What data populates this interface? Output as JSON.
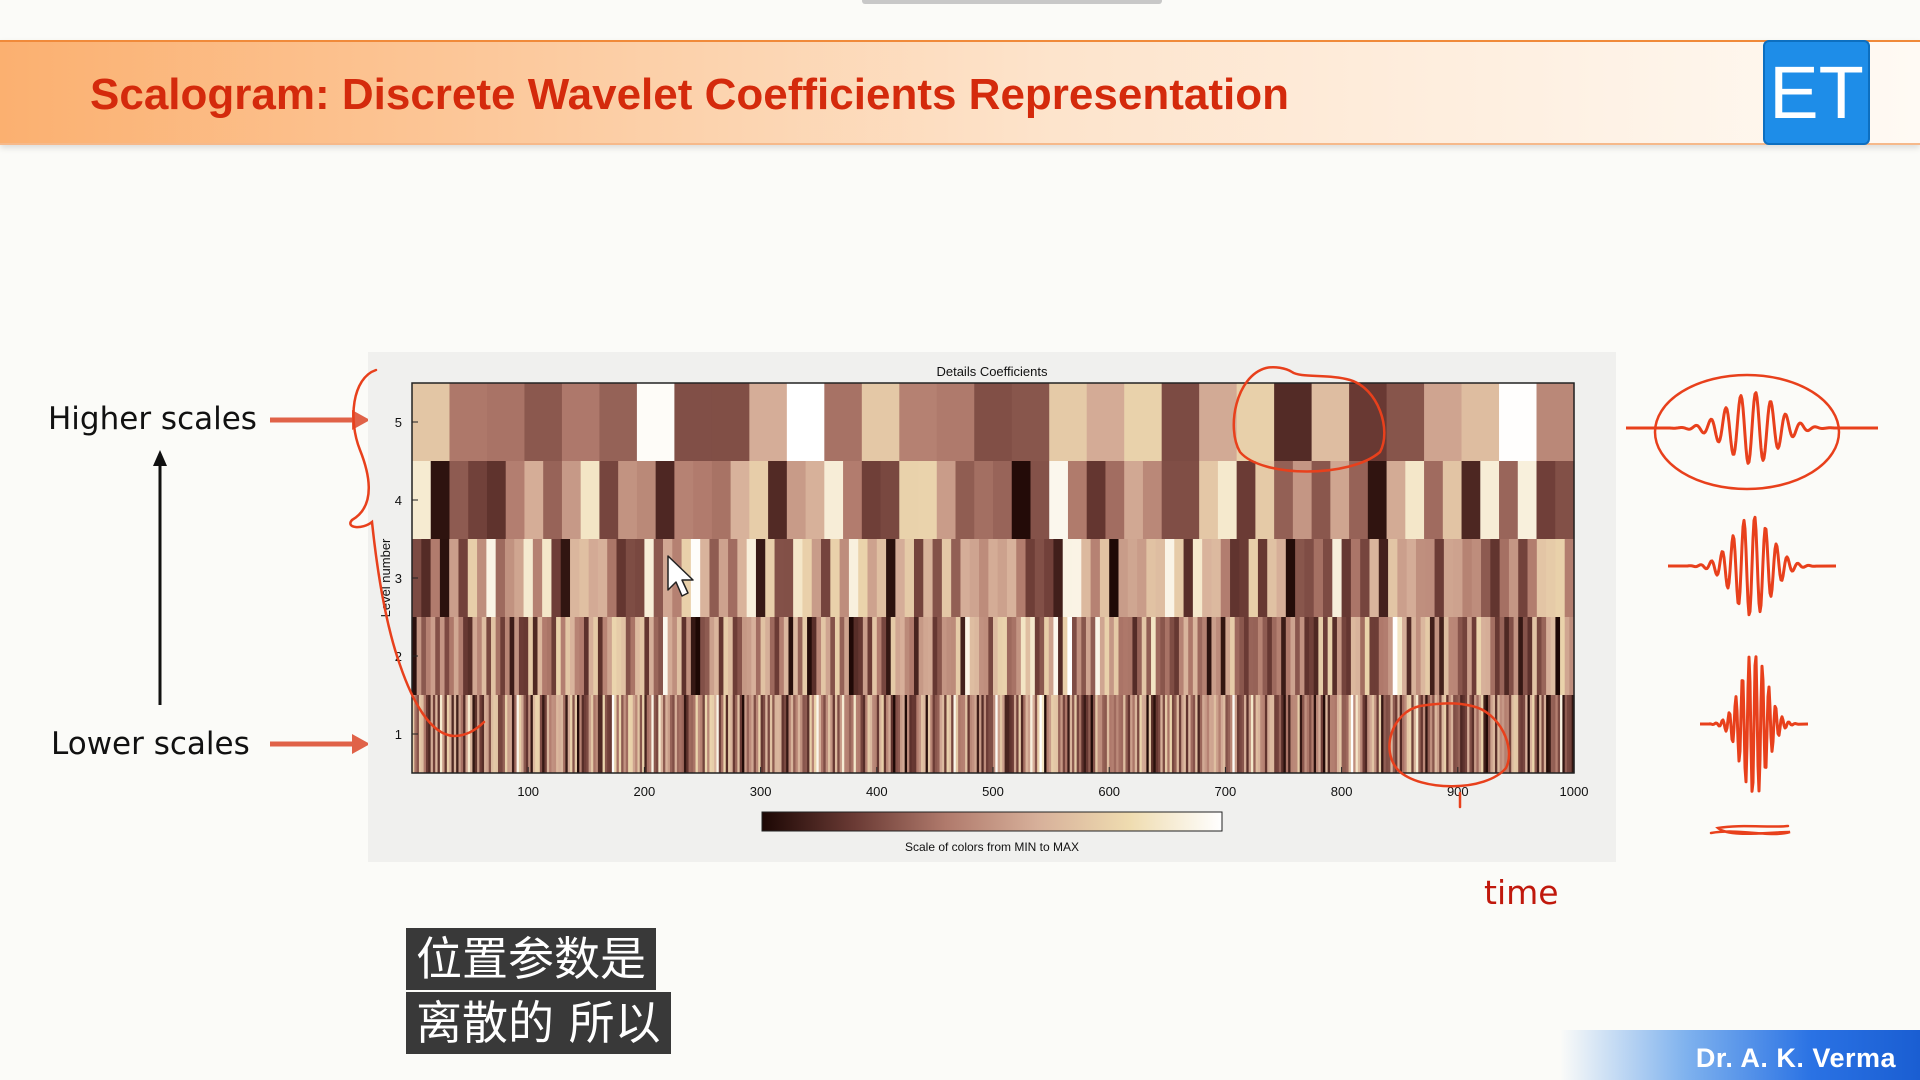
{
  "header": {
    "title": "Scalogram: Discrete Wavelet Coefficients Representation",
    "logo_text": "ET"
  },
  "annotations": {
    "higher_scales": "Higher scales",
    "lower_scales": "Lower scales",
    "time": "time"
  },
  "subtitle": {
    "line1": "位置参数是",
    "line2": "离散的 所以"
  },
  "footer": {
    "author": "Dr. A. K. Verma"
  },
  "chart_data": {
    "type": "heatmap",
    "title": "Details Coefficients",
    "ylabel": "Level number",
    "xlabel": "",
    "x_ticks": [
      100,
      200,
      300,
      400,
      500,
      600,
      700,
      800,
      900,
      1000
    ],
    "y_ticks": [
      5,
      4,
      3,
      2,
      1
    ],
    "xlim": [
      0,
      1000
    ],
    "levels": [
      {
        "level": 5,
        "cells": 31
      },
      {
        "level": 4,
        "cells": 62
      },
      {
        "level": 3,
        "cells": 125
      },
      {
        "level": 2,
        "cells": 250
      },
      {
        "level": 1,
        "cells": 500
      }
    ],
    "colorbar_label": "Scale of colors from MIN to MAX",
    "colormap": [
      "#1c0704",
      "#6a3a34",
      "#b07a6c",
      "#d7b09a",
      "#efdcb0",
      "#ffffff"
    ]
  },
  "colors": {
    "accent_red": "#d42a0c",
    "annotation_red": "#e8401c",
    "logo_blue": "#1e8de8"
  }
}
